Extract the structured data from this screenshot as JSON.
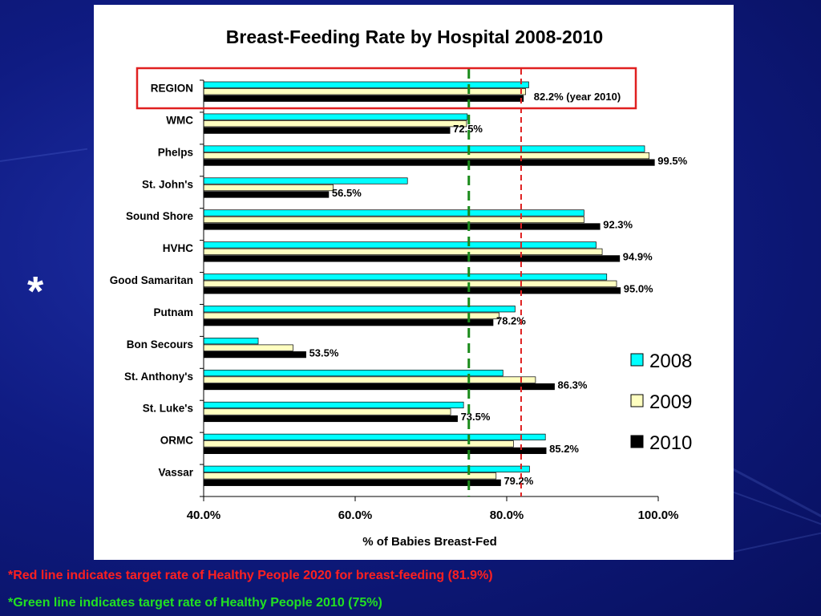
{
  "slide": {
    "marker": "*",
    "notes": [
      {
        "text": "*Red line indicates target rate of Healthy People 2020 for breast-feeding (81.9%)",
        "color": "#ff2020"
      },
      {
        "text": "*Green line indicates target rate of Healthy People 2010 (75%)",
        "color": "#22e022"
      }
    ]
  },
  "chart_data": {
    "type": "bar",
    "orientation": "horizontal",
    "title": "Breast-Feeding Rate by Hospital 2008-2010",
    "xlabel": "% of Babies Breast-Fed",
    "xlim": [
      40,
      100
    ],
    "xticks": [
      40,
      60,
      80,
      100
    ],
    "xtick_labels": [
      "40.0%",
      "60.0%",
      "80.0%",
      "100.0%"
    ],
    "categories": [
      "REGION",
      "WMC",
      "Phelps",
      "St. John's",
      "Sound Shore",
      "HVHC",
      "Good Samaritan",
      "Putnam",
      "Bon Secours",
      "St. Anthony's",
      "St. Luke's",
      "ORMC",
      "Vassar"
    ],
    "series": [
      {
        "name": "2008",
        "color": "#00ffff",
        "values": [
          82.9,
          74.8,
          98.2,
          66.9,
          90.2,
          91.8,
          93.2,
          81.1,
          47.2,
          79.5,
          74.3,
          85.1,
          83.0
        ]
      },
      {
        "name": "2009",
        "color": "#ffffc0",
        "values": [
          82.5,
          74.7,
          98.8,
          57.1,
          90.2,
          92.6,
          94.5,
          79.0,
          51.8,
          83.8,
          72.6,
          80.9,
          78.6
        ]
      },
      {
        "name": "2010",
        "color": "#000000",
        "values": [
          82.2,
          72.5,
          99.5,
          56.5,
          92.3,
          94.9,
          95.0,
          78.2,
          53.5,
          86.3,
          73.5,
          85.2,
          79.2
        ]
      }
    ],
    "data_labels": [
      "82.2% (year 2010)",
      "72.5%",
      "99.5%",
      "56.5%",
      "92.3%",
      "94.9%",
      "95.0%",
      "78.2%",
      "53.5%",
      "86.3%",
      "73.5%",
      "85.2%",
      "79.2%"
    ],
    "reference_lines": [
      {
        "value": 81.9,
        "color": "#e02020",
        "style": "dashed"
      },
      {
        "value": 75,
        "color": "#1a8a1a",
        "style": "dashed"
      }
    ],
    "highlight_category": "REGION",
    "legend": {
      "position": "right",
      "entries": [
        "2008",
        "2009",
        "2010"
      ]
    },
    "grid": false
  }
}
